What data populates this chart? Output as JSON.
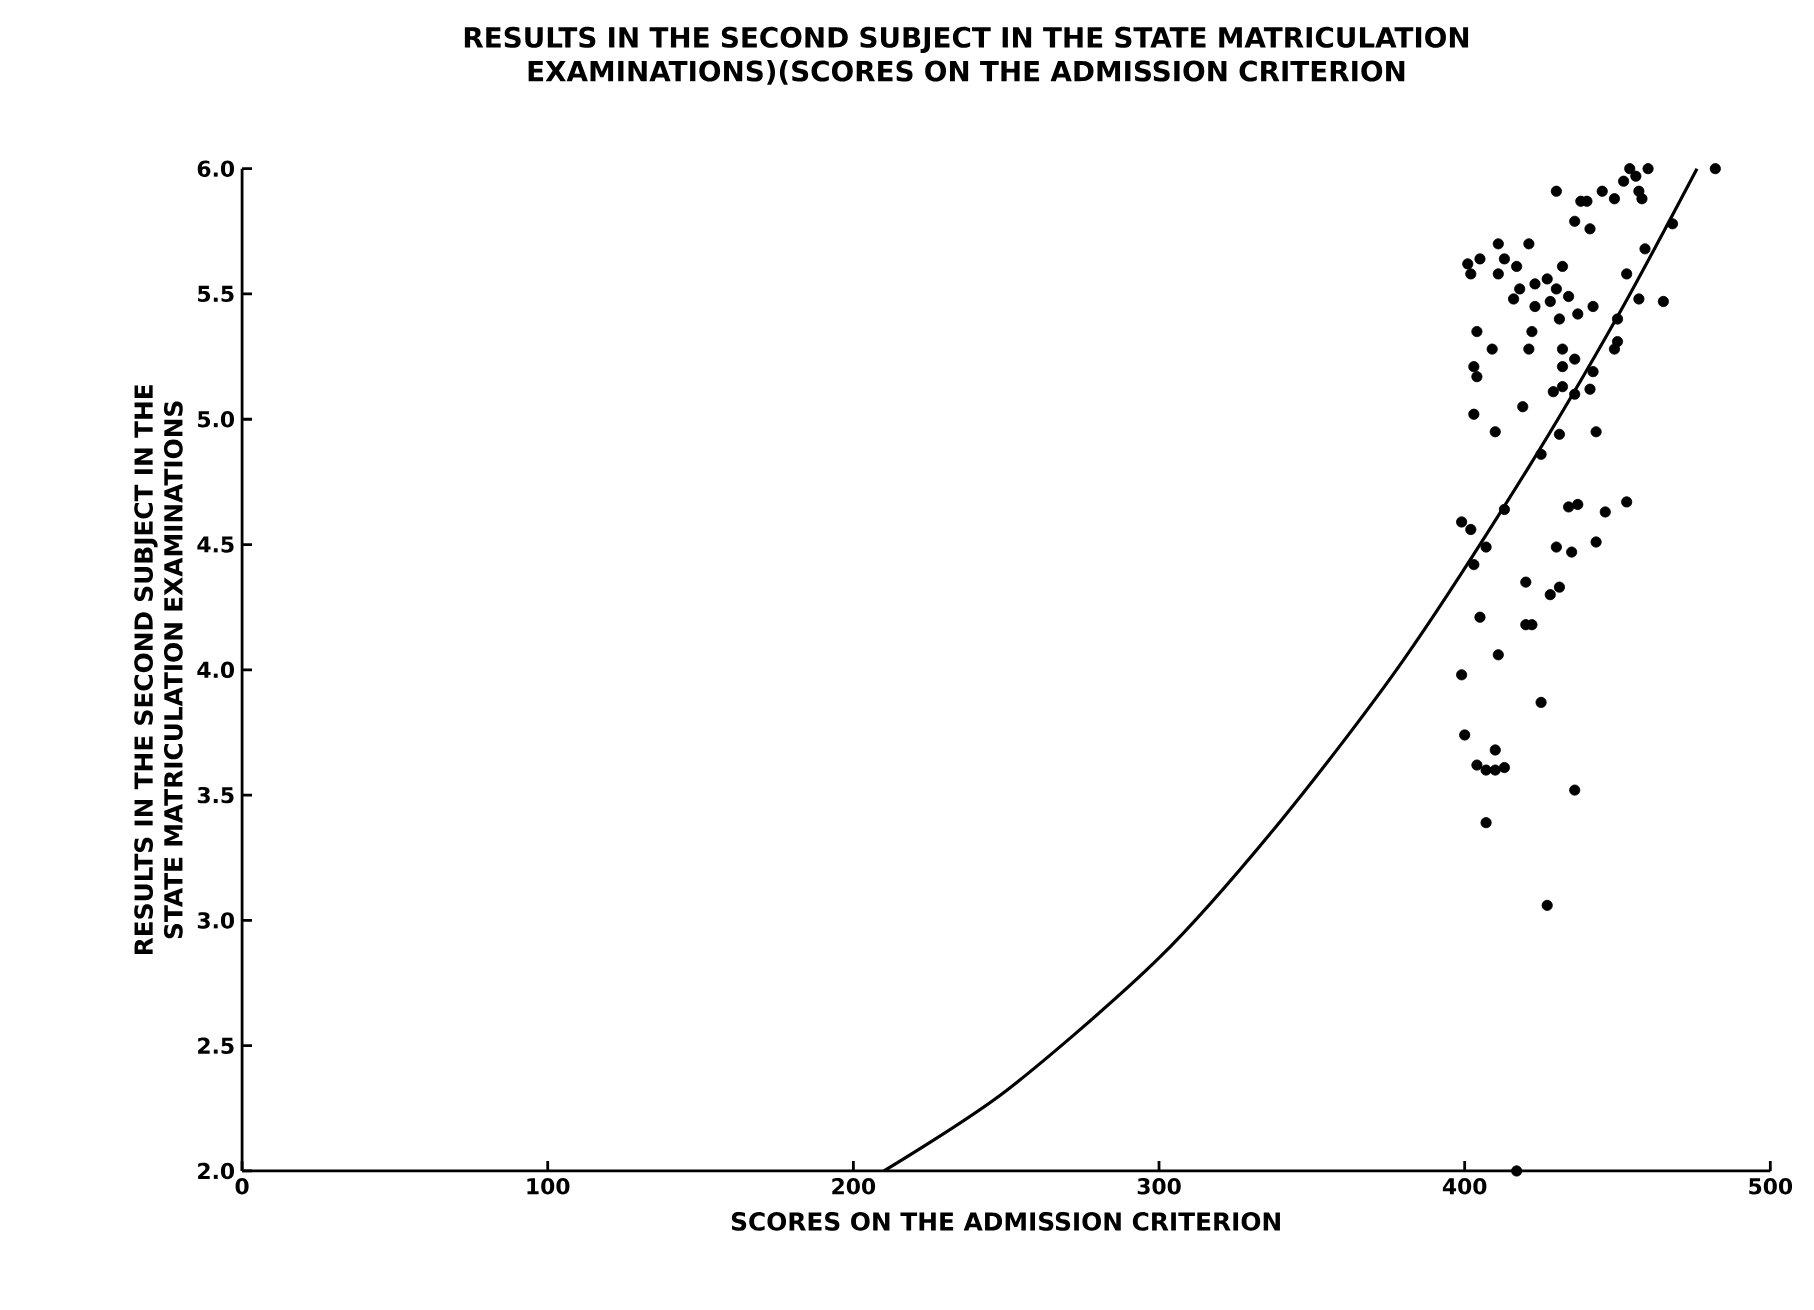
{
  "chart_data": {
    "type": "scatter",
    "title": "RESULTS IN THE SECOND SUBJECT IN THE STATE MATRICULATION EXAMINATIONS)(SCORES ON THE ADMISSION CRITERION",
    "xlabel": "SCORES ON THE ADMISSION CRITERION",
    "ylabel": "RESULTS IN THE SECOND SUBJECT IN THE STATE MATRICULATION EXAMINATIONS",
    "xlim": [
      0,
      500
    ],
    "ylim": [
      2,
      6
    ],
    "xticks": [
      0,
      100,
      200,
      300,
      400,
      500
    ],
    "yticks": [
      {
        "value": 2,
        "label": "2.0"
      },
      {
        "value": 2.5,
        "label": "2.5"
      },
      {
        "value": 3,
        "label": "3.0"
      },
      {
        "value": 3.5,
        "label": "3.5"
      },
      {
        "value": 4,
        "label": "4.0"
      },
      {
        "value": 4.5,
        "label": "4.5"
      },
      {
        "value": 5,
        "label": "5.0"
      },
      {
        "value": 5.5,
        "label": "5.5"
      },
      {
        "value": 6,
        "label": "6.0"
      }
    ],
    "marker": "circle",
    "series": [
      {
        "color": "#000000",
        "x": [
          454,
          460,
          482,
          430,
          445,
          452,
          456,
          449,
          457,
          458,
          438,
          440,
          436,
          441,
          468,
          411,
          421,
          459,
          401,
          405,
          413,
          417,
          402,
          411,
          432,
          453,
          465,
          418,
          423,
          427,
          430,
          416,
          423,
          428,
          434,
          442,
          457,
          431,
          437,
          450,
          404,
          422,
          409,
          421,
          432,
          436,
          432,
          449,
          450,
          403,
          404,
          442,
          429,
          436,
          441,
          432,
          403,
          419,
          410,
          431,
          443,
          425,
          413,
          434,
          437,
          446,
          453,
          399,
          402,
          407,
          403,
          430,
          435,
          443,
          420,
          428,
          431,
          405,
          420,
          422,
          411,
          399,
          425,
          400,
          410,
          404,
          407,
          410,
          413,
          436,
          407,
          427,
          417
        ],
        "values": [
          6.0,
          6.0,
          6.0,
          5.91,
          5.91,
          5.95,
          5.97,
          5.88,
          5.91,
          5.88,
          5.87,
          5.87,
          5.79,
          5.76,
          5.78,
          5.7,
          5.7,
          5.68,
          5.62,
          5.64,
          5.64,
          5.61,
          5.58,
          5.58,
          5.61,
          5.58,
          5.47,
          5.52,
          5.54,
          5.56,
          5.52,
          5.48,
          5.45,
          5.47,
          5.49,
          5.45,
          5.48,
          5.4,
          5.42,
          5.4,
          5.35,
          5.35,
          5.28,
          5.28,
          5.28,
          5.24,
          5.21,
          5.28,
          5.31,
          5.21,
          5.17,
          5.19,
          5.11,
          5.1,
          5.12,
          5.13,
          5.02,
          5.05,
          4.95,
          4.94,
          4.95,
          4.86,
          4.64,
          4.65,
          4.66,
          4.63,
          4.67,
          4.59,
          4.56,
          4.49,
          4.42,
          4.49,
          4.47,
          4.51,
          4.35,
          4.3,
          4.33,
          4.21,
          4.18,
          4.18,
          4.06,
          3.98,
          3.87,
          3.74,
          3.68,
          3.62,
          3.6,
          3.6,
          3.61,
          3.52,
          3.39,
          3.06,
          2.0
        ]
      },
      {
        "type": "line",
        "color": "#000000",
        "marker": "none",
        "x": [
          210,
          250,
          300,
          340,
          380,
          420,
          450,
          476
        ],
        "values": [
          2.0,
          2.32,
          2.85,
          3.4,
          4.04,
          4.79,
          5.41,
          6.0
        ]
      }
    ]
  }
}
